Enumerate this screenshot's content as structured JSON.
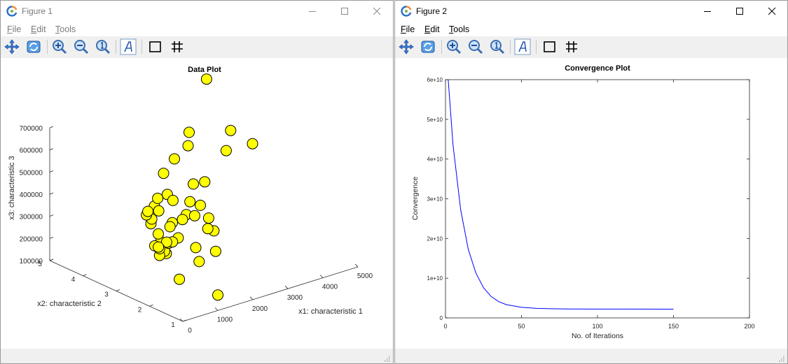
{
  "windows": [
    {
      "title": "Figure 1",
      "menus": [
        "File",
        "Edit",
        "Tools"
      ],
      "menu_mnemonics": [
        "F",
        "E",
        "T"
      ]
    },
    {
      "title": "Figure 2",
      "menus": [
        "File",
        "Edit",
        "Tools"
      ],
      "menu_mnemonics": [
        "F",
        "E",
        "T"
      ]
    }
  ],
  "toolbar": {
    "tools": [
      "pan-icon",
      "rotate-icon",
      "zoom-in-icon",
      "zoom-out-icon",
      "zoom-reset-icon",
      "text-icon",
      "axes-box-icon",
      "grid-icon"
    ]
  },
  "colors": {
    "marker_fill": "#ffff00",
    "marker_edge": "#000000",
    "line": "#0000ff"
  },
  "chart_data": [
    {
      "type": "scatter",
      "projection": "3d",
      "title": "Data Plot",
      "xlabel": "x1: characteristic 1",
      "ylabel": "x2: characteristic 2",
      "zlabel": "x3: characteristic 3",
      "x_ticks": [
        "0",
        "1000",
        "2000",
        "3000",
        "4000",
        "5000"
      ],
      "y_ticks": [
        "1",
        "2",
        "3",
        "4",
        "5"
      ],
      "z_ticks": [
        "100000",
        "200000",
        "300000",
        "400000",
        "500000",
        "600000",
        "700000"
      ],
      "xlim": [
        0,
        5000
      ],
      "ylim": [
        1,
        5
      ],
      "zlim": [
        100000,
        700000
      ],
      "points": [
        [
          2104,
          3,
          399900
        ],
        [
          1600,
          3,
          329900
        ],
        [
          2400,
          3,
          369000
        ],
        [
          1416,
          2,
          232000
        ],
        [
          3000,
          4,
          539900
        ],
        [
          1985,
          4,
          299900
        ],
        [
          1534,
          3,
          314900
        ],
        [
          1427,
          3,
          198999
        ],
        [
          1380,
          3,
          212000
        ],
        [
          1494,
          3,
          242500
        ],
        [
          1940,
          4,
          239999
        ],
        [
          2000,
          3,
          347000
        ],
        [
          1890,
          3,
          329999
        ],
        [
          4478,
          5,
          699900
        ],
        [
          1268,
          3,
          259900
        ],
        [
          2300,
          4,
          449900
        ],
        [
          1320,
          2,
          299900
        ],
        [
          1236,
          3,
          199900
        ],
        [
          2609,
          4,
          499998
        ],
        [
          3031,
          4,
          599000
        ],
        [
          1767,
          3,
          252900
        ],
        [
          1888,
          2,
          255000
        ],
        [
          1604,
          3,
          242900
        ],
        [
          1962,
          4,
          259900
        ],
        [
          3890,
          3,
          573900
        ],
        [
          1100,
          3,
          249900
        ],
        [
          1458,
          3,
          464500
        ],
        [
          2526,
          3,
          469000
        ],
        [
          2200,
          3,
          475000
        ],
        [
          2637,
          3,
          299900
        ],
        [
          1839,
          2,
          349900
        ],
        [
          1000,
          1,
          169900
        ],
        [
          2040,
          4,
          314900
        ],
        [
          3137,
          3,
          579900
        ],
        [
          1811,
          4,
          285900
        ],
        [
          1437,
          3,
          249900
        ],
        [
          1239,
          3,
          229900
        ],
        [
          2132,
          4,
          345000
        ],
        [
          4215,
          4,
          549000
        ],
        [
          2162,
          4,
          287000
        ],
        [
          1664,
          2,
          368500
        ],
        [
          2238,
          3,
          329900
        ],
        [
          2567,
          4,
          314000
        ],
        [
          1200,
          3,
          299000
        ],
        [
          852,
          2,
          179900
        ],
        [
          1852,
          4,
          299900
        ],
        [
          1203,
          3,
          239500
        ]
      ],
      "grid": false,
      "legend": "none"
    },
    {
      "type": "line",
      "title": "Convergence Plot",
      "xlabel": "No. of Iterations",
      "ylabel": "Convergence",
      "x_ticks": [
        "0",
        "50",
        "100",
        "150",
        "200"
      ],
      "y_ticks": [
        "0",
        "1e+10",
        "2e+10",
        "3e+10",
        "4e+10",
        "5e+10",
        "6e+10"
      ],
      "xlim": [
        0,
        200
      ],
      "ylim": [
        0,
        60000000000
      ],
      "series": [
        {
          "x": [
            1,
            5,
            10,
            15,
            20,
            25,
            30,
            35,
            40,
            50,
            60,
            70,
            80,
            100,
            120,
            150
          ],
          "y": [
            64000000000,
            43500000000,
            27200000000,
            17300000000,
            11300000000,
            7600000000,
            5400000000,
            4100000000,
            3350000000,
            2650000000,
            2400000000,
            2300000000,
            2250000000,
            2220000000,
            2210000000,
            2200000000
          ]
        }
      ],
      "grid": false,
      "legend": "none"
    }
  ]
}
